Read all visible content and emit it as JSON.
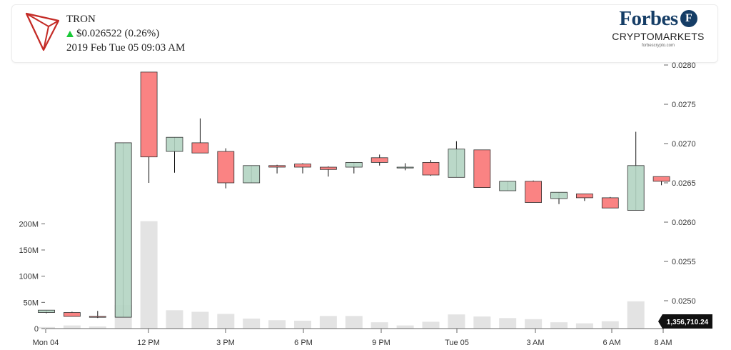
{
  "header": {
    "coin_name": "TRON",
    "price_change": "$0.026522 (0.26%)",
    "timestamp": "2019 Feb Tue 05 09:03 AM",
    "change_direction": "up",
    "icons": {
      "logo": "tron-logo-icon",
      "direction": "triangle-up-icon"
    }
  },
  "brand": {
    "name": "Forbes",
    "badge_letter": "F",
    "subtitle": "CRYPTOMARKETS",
    "url": "forbescrypto.com"
  },
  "last_value_label": "1,356,710.24",
  "colors": {
    "up_fill": "#b3d4c2",
    "down_fill": "#fa8383",
    "volume_fill": "#e3e3e3",
    "tron_red": "#c42b26",
    "brand_navy": "#153d66"
  },
  "chart_data": {
    "type": "candlestick",
    "x_tick_labels": [
      "Mon 04",
      "12 PM",
      "3 PM",
      "6 PM",
      "9 PM",
      "Tue 05",
      "3 AM",
      "6 AM",
      "8 AM"
    ],
    "price_axis": {
      "side": "right",
      "ticks": [
        "0.0250",
        "0.0255",
        "0.0260",
        "0.0265",
        "0.0270",
        "0.0275",
        "0.0280"
      ],
      "range": [
        0.02462,
        0.028
      ]
    },
    "volume_axis": {
      "side": "left",
      "ticks": [
        "0",
        "50M",
        "100M",
        "150M",
        "200M"
      ],
      "range": [
        0,
        200
      ]
    },
    "candles": [
      {
        "o": 0.02485,
        "c": 0.02488,
        "h": 0.02488,
        "l": 0.02484,
        "v": 3
      },
      {
        "o": 0.02485,
        "c": 0.0248,
        "h": 0.02486,
        "l": 0.0248,
        "v": 6
      },
      {
        "o": 0.0248,
        "c": 0.02479,
        "h": 0.02487,
        "l": 0.02478,
        "v": 4
      },
      {
        "o": 0.02479,
        "c": 0.02701,
        "h": 0.02701,
        "l": 0.02479,
        "v": 45
      },
      {
        "o": 0.02791,
        "c": 0.02683,
        "h": 0.02791,
        "l": 0.0265,
        "v": 205
      },
      {
        "o": 0.0269,
        "c": 0.02708,
        "h": 0.02708,
        "l": 0.02663,
        "v": 35
      },
      {
        "o": 0.02701,
        "c": 0.02688,
        "h": 0.02732,
        "l": 0.02688,
        "v": 32
      },
      {
        "o": 0.0269,
        "c": 0.0265,
        "h": 0.02694,
        "l": 0.02643,
        "v": 28
      },
      {
        "o": 0.0265,
        "c": 0.02672,
        "h": 0.02672,
        "l": 0.0265,
        "v": 19
      },
      {
        "o": 0.02672,
        "c": 0.0267,
        "h": 0.02673,
        "l": 0.02662,
        "v": 16
      },
      {
        "o": 0.02674,
        "c": 0.0267,
        "h": 0.02675,
        "l": 0.02662,
        "v": 15
      },
      {
        "o": 0.0267,
        "c": 0.02667,
        "h": 0.02671,
        "l": 0.02658,
        "v": 24
      },
      {
        "o": 0.0267,
        "c": 0.02676,
        "h": 0.02676,
        "l": 0.02662,
        "v": 24
      },
      {
        "o": 0.02682,
        "c": 0.02676,
        "h": 0.02686,
        "l": 0.02672,
        "v": 12
      },
      {
        "o": 0.0267,
        "c": 0.0267,
        "h": 0.02675,
        "l": 0.02666,
        "v": 6
      },
      {
        "o": 0.02676,
        "c": 0.0266,
        "h": 0.02679,
        "l": 0.02659,
        "v": 13
      },
      {
        "o": 0.02657,
        "c": 0.02693,
        "h": 0.02703,
        "l": 0.02657,
        "v": 27
      },
      {
        "o": 0.02692,
        "c": 0.02644,
        "h": 0.02692,
        "l": 0.02644,
        "v": 23
      },
      {
        "o": 0.0264,
        "c": 0.02652,
        "h": 0.02652,
        "l": 0.0264,
        "v": 20
      },
      {
        "o": 0.02652,
        "c": 0.02625,
        "h": 0.02653,
        "l": 0.02625,
        "v": 18
      },
      {
        "o": 0.0263,
        "c": 0.02638,
        "h": 0.02638,
        "l": 0.02623,
        "v": 12
      },
      {
        "o": 0.02636,
        "c": 0.02631,
        "h": 0.02636,
        "l": 0.02627,
        "v": 10
      },
      {
        "o": 0.02631,
        "c": 0.02618,
        "h": 0.02632,
        "l": 0.02618,
        "v": 14
      },
      {
        "o": 0.02615,
        "c": 0.02672,
        "h": 0.02715,
        "l": 0.02615,
        "v": 52
      },
      {
        "o": 0.02658,
        "c": 0.02652,
        "h": 0.02658,
        "l": 0.02647,
        "v": 0
      }
    ]
  }
}
